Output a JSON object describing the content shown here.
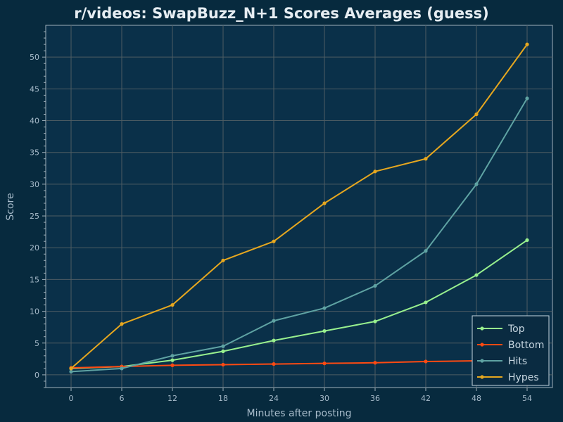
{
  "chart_data": {
    "type": "line",
    "title": "r/videos: SwapBuzz_N+1 Scores Averages (guess)",
    "xlabel": "Minutes after posting",
    "ylabel": "Score",
    "x": [
      0,
      6,
      12,
      18,
      24,
      30,
      36,
      42,
      48,
      54
    ],
    "xticks": [
      0,
      6,
      12,
      18,
      24,
      30,
      36,
      42,
      48,
      54
    ],
    "yticks": [
      0,
      5,
      10,
      15,
      20,
      25,
      30,
      35,
      40,
      45,
      50
    ],
    "xlim": [
      -3,
      57
    ],
    "ylim": [
      -2,
      55
    ],
    "grid": true,
    "legend_position": "bottom-right",
    "series": [
      {
        "name": "Top",
        "color": "#98f08e",
        "values": [
          1.0,
          1.3,
          2.3,
          3.7,
          5.4,
          6.9,
          8.4,
          11.4,
          15.7,
          21.2
        ]
      },
      {
        "name": "Bottom",
        "color": "#ff4a12",
        "values": [
          1.1,
          1.3,
          1.5,
          1.6,
          1.7,
          1.8,
          1.9,
          2.1,
          2.2,
          2.3
        ]
      },
      {
        "name": "Hits",
        "color": "#5fa3a3",
        "values": [
          0.5,
          1.0,
          3.0,
          4.5,
          8.5,
          10.5,
          14.0,
          19.5,
          30.0,
          43.5
        ]
      },
      {
        "name": "Hypes",
        "color": "#e6a71f",
        "values": [
          1.0,
          8.0,
          11.0,
          18.0,
          21.0,
          27.0,
          32.0,
          34.0,
          41.0,
          52.0
        ]
      }
    ]
  }
}
